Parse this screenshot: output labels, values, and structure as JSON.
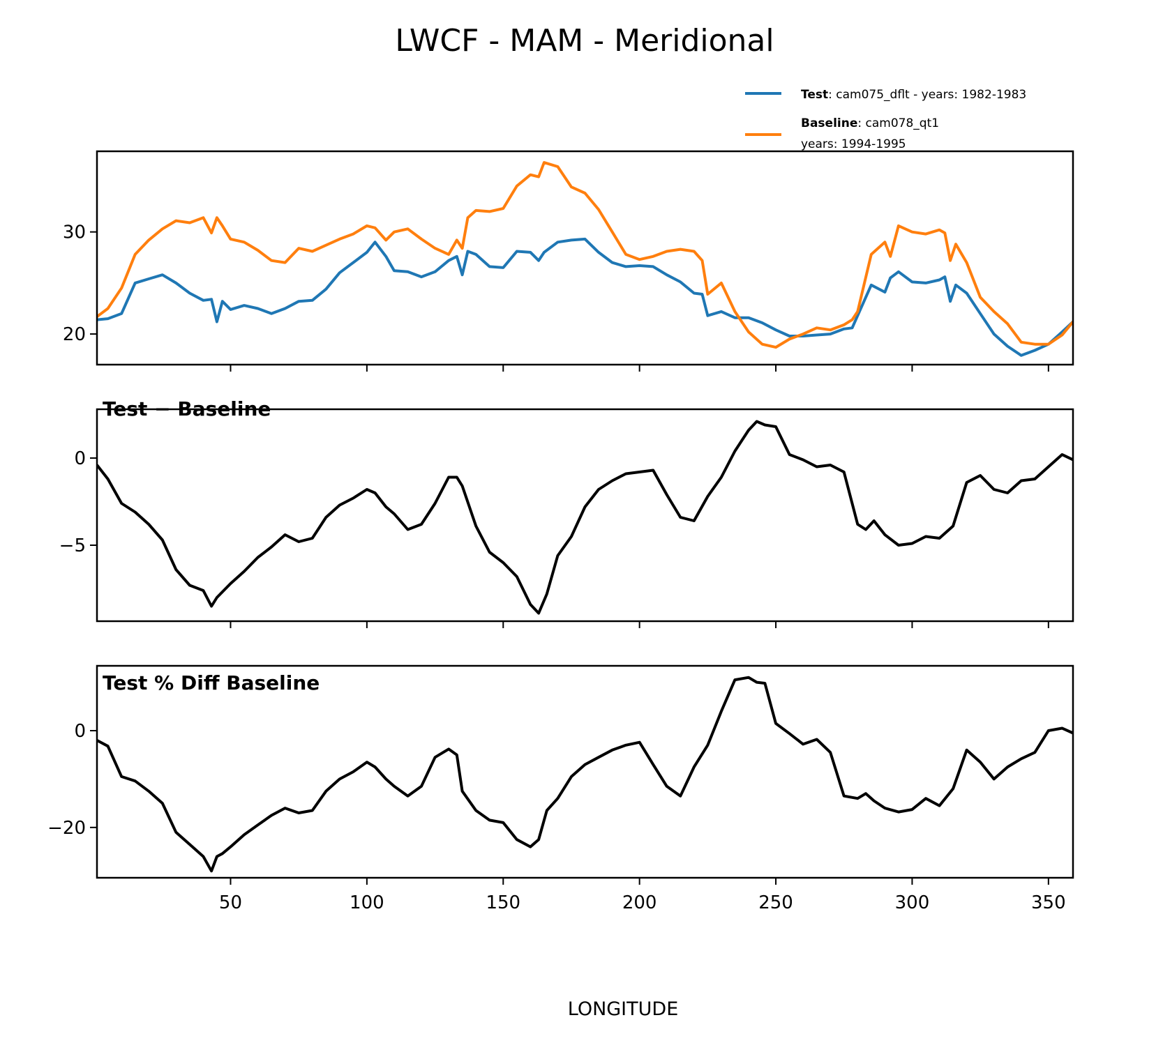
{
  "chart_data": [
    {
      "type": "line",
      "panel": "top",
      "title": "LWCF - MAM - Meridional",
      "xlabel": "",
      "ylabel": "",
      "xlim": [
        1,
        359
      ],
      "ylim": [
        17.0,
        37.9
      ],
      "yticks": [
        20,
        30
      ],
      "xticks": [
        50,
        100,
        150,
        200,
        250,
        300,
        350
      ],
      "show_xticklabels": false,
      "grid": false,
      "legend": {
        "placement": "top-right (outside, above axes)",
        "entries": [
          {
            "bold": "Test",
            "text": ": cam075_dflt - years: 1982-1983",
            "text2": "",
            "color": "#1f77b4"
          },
          {
            "bold": "Baseline",
            "text": ": cam078_qt1",
            "text2": "years: 1994-1995",
            "color": "#ff7f0e"
          }
        ]
      },
      "x": [
        1,
        5,
        10,
        15,
        20,
        25,
        30,
        35,
        40,
        43,
        45,
        47,
        50,
        55,
        60,
        65,
        70,
        75,
        80,
        85,
        90,
        95,
        100,
        103,
        107,
        110,
        115,
        120,
        125,
        130,
        133,
        135,
        137,
        140,
        145,
        150,
        155,
        160,
        163,
        165,
        170,
        175,
        180,
        185,
        190,
        195,
        200,
        205,
        210,
        215,
        220,
        223,
        225,
        230,
        235,
        240,
        245,
        250,
        255,
        260,
        265,
        270,
        275,
        278,
        280,
        285,
        290,
        292,
        295,
        300,
        305,
        310,
        312,
        314,
        316,
        320,
        325,
        330,
        335,
        340,
        345,
        350,
        355,
        359
      ],
      "series": [
        {
          "name": "Test",
          "color": "#1f77b4",
          "values": [
            21.4,
            21.5,
            22.0,
            25.0,
            25.4,
            25.8,
            25.0,
            24.0,
            23.3,
            23.4,
            21.2,
            23.2,
            22.4,
            22.8,
            22.5,
            22.0,
            22.5,
            23.2,
            23.3,
            24.4,
            26.0,
            27.0,
            28.0,
            29.0,
            27.6,
            26.2,
            26.1,
            25.6,
            26.1,
            27.2,
            27.6,
            25.8,
            28.1,
            27.8,
            26.6,
            26.5,
            28.1,
            28.0,
            27.2,
            28.0,
            29.0,
            29.2,
            29.3,
            28.0,
            27.0,
            26.6,
            26.7,
            26.6,
            25.8,
            25.1,
            24.0,
            23.9,
            21.8,
            22.2,
            21.6,
            21.6,
            21.1,
            20.4,
            19.8,
            19.8,
            19.9,
            20.0,
            20.5,
            20.6,
            21.8,
            24.8,
            24.1,
            25.5,
            26.1,
            25.1,
            25.0,
            25.3,
            25.6,
            23.2,
            24.8,
            24.0,
            22.0,
            20.0,
            18.8,
            17.9,
            18.4,
            19.0,
            20.2,
            21.2
          ]
        },
        {
          "name": "Baseline",
          "color": "#ff7f0e",
          "values": [
            21.7,
            22.5,
            24.5,
            27.8,
            29.2,
            30.3,
            31.1,
            30.9,
            31.4,
            29.9,
            31.4,
            30.6,
            29.3,
            29.0,
            28.2,
            27.2,
            27.0,
            28.4,
            28.1,
            28.7,
            29.3,
            29.8,
            30.6,
            30.4,
            29.2,
            30.0,
            30.3,
            29.3,
            28.4,
            27.8,
            29.2,
            28.4,
            31.4,
            32.1,
            32.0,
            32.3,
            34.5,
            35.6,
            35.4,
            36.8,
            36.4,
            34.4,
            33.8,
            32.2,
            30.0,
            27.8,
            27.3,
            27.6,
            28.1,
            28.3,
            28.1,
            27.2,
            23.9,
            25.0,
            22.2,
            20.2,
            19.0,
            18.7,
            19.5,
            20.0,
            20.6,
            20.4,
            20.9,
            21.4,
            22.2,
            27.8,
            29.0,
            27.6,
            30.6,
            30.0,
            29.8,
            30.2,
            29.9,
            27.2,
            28.8,
            27.0,
            23.6,
            22.2,
            21.0,
            19.2,
            19.0,
            19.0,
            19.9,
            21.2
          ]
        }
      ]
    },
    {
      "type": "line",
      "panel": "middle",
      "title": "Test − Baseline",
      "xlabel": "",
      "ylabel": "",
      "xlim": [
        1,
        359
      ],
      "ylim": [
        -9.36,
        2.8
      ],
      "yticks": [
        -5,
        0
      ],
      "ytick_labels": [
        "−5",
        "0"
      ],
      "xticks": [
        50,
        100,
        150,
        200,
        250,
        300,
        350
      ],
      "show_xticklabels": false,
      "grid": false,
      "x": [
        1,
        5,
        10,
        15,
        20,
        25,
        30,
        35,
        40,
        43,
        45,
        50,
        55,
        60,
        65,
        70,
        75,
        80,
        85,
        90,
        95,
        100,
        103,
        107,
        110,
        115,
        120,
        125,
        130,
        133,
        135,
        140,
        145,
        150,
        155,
        160,
        163,
        166,
        170,
        175,
        180,
        185,
        190,
        195,
        200,
        205,
        210,
        215,
        220,
        225,
        230,
        235,
        240,
        243,
        246,
        250,
        255,
        260,
        265,
        270,
        275,
        280,
        283,
        286,
        290,
        295,
        300,
        305,
        310,
        315,
        320,
        325,
        330,
        335,
        340,
        345,
        350,
        355,
        359
      ],
      "series": [
        {
          "name": "Test − Baseline",
          "color": "#000000",
          "values": [
            -0.4,
            -1.2,
            -2.6,
            -3.1,
            -3.8,
            -4.7,
            -6.4,
            -7.3,
            -7.6,
            -8.5,
            -8.0,
            -7.2,
            -6.5,
            -5.7,
            -5.1,
            -4.4,
            -4.8,
            -4.6,
            -3.4,
            -2.7,
            -2.3,
            -1.8,
            -2.0,
            -2.8,
            -3.2,
            -4.1,
            -3.8,
            -2.6,
            -1.1,
            -1.1,
            -1.6,
            -3.9,
            -5.4,
            -6.0,
            -6.8,
            -8.4,
            -8.9,
            -7.8,
            -5.6,
            -4.5,
            -2.8,
            -1.8,
            -1.3,
            -0.9,
            -0.8,
            -0.7,
            -2.1,
            -3.4,
            -3.6,
            -2.2,
            -1.1,
            0.4,
            1.6,
            2.1,
            1.9,
            1.8,
            0.2,
            -0.1,
            -0.5,
            -0.4,
            -0.8,
            -3.8,
            -4.1,
            -3.6,
            -4.4,
            -5.0,
            -4.9,
            -4.5,
            -4.6,
            -3.9,
            -1.4,
            -1.0,
            -1.8,
            -2.0,
            -1.3,
            -1.2,
            -0.5,
            0.2,
            -0.1
          ]
        }
      ]
    },
    {
      "type": "line",
      "panel": "bottom",
      "title": "Test % Diff Baseline",
      "xlabel": "LONGITUDE",
      "ylabel": "",
      "xlim": [
        1,
        359
      ],
      "ylim": [
        -30.4,
        13.4
      ],
      "yticks": [
        -20,
        0
      ],
      "ytick_labels": [
        "−20",
        "0"
      ],
      "xticks": [
        50,
        100,
        150,
        200,
        250,
        300,
        350
      ],
      "xtick_labels": [
        "50",
        "100",
        "150",
        "200",
        "250",
        "300",
        "350"
      ],
      "grid": false,
      "x": [
        1,
        5,
        10,
        15,
        20,
        25,
        30,
        35,
        40,
        43,
        45,
        47,
        50,
        55,
        60,
        65,
        70,
        75,
        80,
        85,
        90,
        95,
        100,
        103,
        107,
        110,
        115,
        120,
        125,
        130,
        133,
        135,
        140,
        145,
        150,
        155,
        160,
        163,
        166,
        170,
        175,
        180,
        185,
        190,
        195,
        200,
        205,
        210,
        215,
        220,
        225,
        230,
        235,
        240,
        243,
        246,
        250,
        255,
        260,
        265,
        270,
        275,
        280,
        283,
        286,
        290,
        295,
        300,
        305,
        310,
        315,
        320,
        325,
        330,
        335,
        340,
        345,
        350,
        355,
        359
      ],
      "series": [
        {
          "name": "Test % Diff Baseline",
          "color": "#000000",
          "values": [
            -2.0,
            -3.2,
            -9.5,
            -10.4,
            -12.5,
            -15.0,
            -21.0,
            -23.5,
            -26.0,
            -29.0,
            -26.0,
            -25.4,
            -24.0,
            -21.5,
            -19.5,
            -17.5,
            -16.0,
            -17.0,
            -16.5,
            -12.5,
            -10.0,
            -8.5,
            -6.5,
            -7.5,
            -10.0,
            -11.5,
            -13.5,
            -11.5,
            -5.5,
            -3.8,
            -5.0,
            -12.5,
            -16.5,
            -18.5,
            -19.0,
            -22.5,
            -24.0,
            -22.5,
            -16.5,
            -14.0,
            -9.5,
            -7.0,
            -5.5,
            -4.0,
            -3.0,
            -2.4,
            -7.0,
            -11.5,
            -13.5,
            -7.5,
            -3.0,
            4.0,
            10.5,
            11.0,
            10.0,
            9.8,
            1.5,
            -0.6,
            -2.8,
            -1.8,
            -4.5,
            -13.5,
            -14.0,
            -13.0,
            -14.5,
            -16.0,
            -16.8,
            -16.3,
            -14.0,
            -15.5,
            -12.0,
            -4.0,
            -6.5,
            -10.0,
            -7.5,
            -5.8,
            -4.5,
            0.0,
            0.5,
            -0.5
          ]
        }
      ]
    }
  ]
}
